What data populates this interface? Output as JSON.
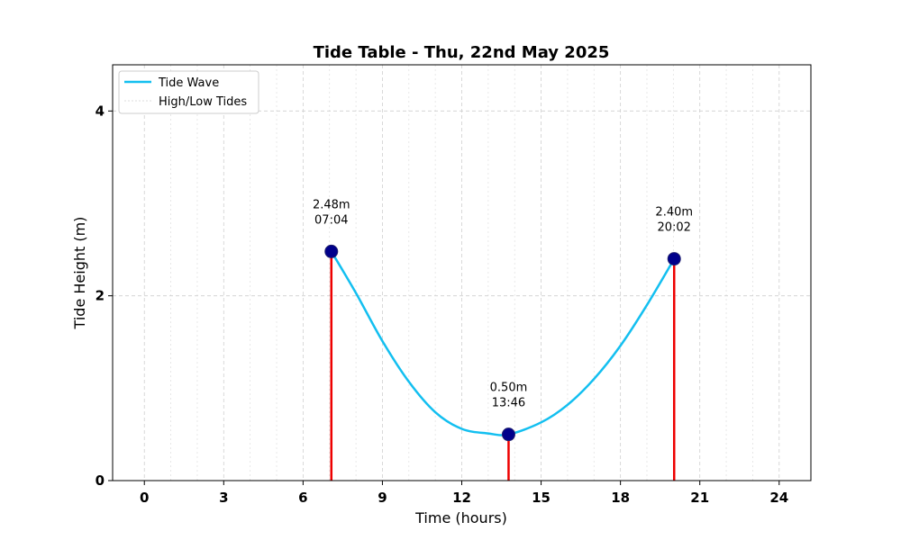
{
  "chart_data": {
    "type": "line",
    "title": "Tide Table - Thu, 22nd May 2025",
    "xlabel": "Time (hours)",
    "ylabel": "Tide Height (m)",
    "xlim": [
      -1.2,
      25.2
    ],
    "ylim": [
      0,
      4.5
    ],
    "x_ticks": [
      0,
      3,
      6,
      9,
      12,
      15,
      18,
      21,
      24
    ],
    "x_tick_labels": [
      "0",
      "3",
      "6",
      "9",
      "12",
      "15",
      "18",
      "21",
      "24"
    ],
    "y_ticks": [
      0,
      2,
      4
    ],
    "y_tick_labels": [
      "0",
      "2",
      "4"
    ],
    "grid": true,
    "legend_position": "top-left",
    "series": [
      {
        "name": "Tide Wave",
        "color": "#13bff0",
        "x": [
          7.07,
          8.0,
          9.0,
          10.0,
          11.0,
          12.0,
          13.0,
          13.77,
          15.0,
          16.0,
          17.0,
          18.0,
          19.0,
          20.03
        ],
        "y": [
          2.48,
          2.03,
          1.51,
          1.07,
          0.74,
          0.56,
          0.51,
          0.5,
          0.63,
          0.82,
          1.1,
          1.46,
          1.9,
          2.4
        ]
      },
      {
        "name": "High/Low Tides",
        "color": "#ee0000",
        "marker_color": "#00008b",
        "points": [
          {
            "x": 7.07,
            "y": 2.48,
            "height_label": "2.48m",
            "time_label": "07:04"
          },
          {
            "x": 13.77,
            "y": 0.5,
            "height_label": "0.50m",
            "time_label": "13:46"
          },
          {
            "x": 20.03,
            "y": 2.4,
            "height_label": "2.40m",
            "time_label": "20:02"
          }
        ]
      }
    ]
  }
}
